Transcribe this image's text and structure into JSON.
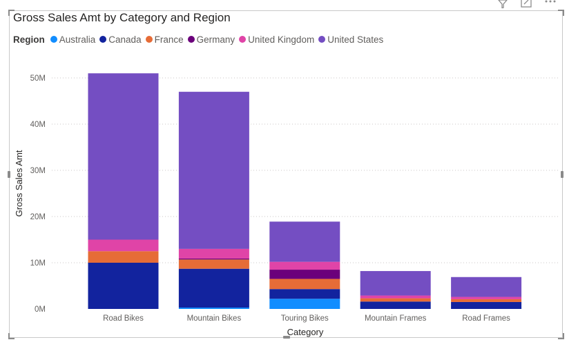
{
  "chart_data": {
    "type": "bar",
    "stacked": true,
    "title": "Gross Sales Amt by Category and Region",
    "xlabel": "Category",
    "ylabel": "Gross Sales Amt",
    "legend_title": "Region",
    "ylim": [
      0,
      53000000
    ],
    "yticks": [
      0,
      10000000,
      20000000,
      30000000,
      40000000,
      50000000
    ],
    "ytick_labels": [
      "0M",
      "10M",
      "20M",
      "30M",
      "40M",
      "50M"
    ],
    "categories": [
      "Road Bikes",
      "Mountain Bikes",
      "Touring Bikes",
      "Mountain Frames",
      "Road Frames"
    ],
    "series": [
      {
        "name": "Australia",
        "color": "#118dff",
        "values": [
          0,
          300000,
          2200000,
          0,
          0
        ]
      },
      {
        "name": "Canada",
        "color": "#12239e",
        "values": [
          10000000,
          8400000,
          2100000,
          1600000,
          1500000
        ]
      },
      {
        "name": "France",
        "color": "#e66c37",
        "values": [
          2500000,
          2000000,
          2200000,
          700000,
          600000
        ]
      },
      {
        "name": "Germany",
        "color": "#6b007b",
        "values": [
          0,
          200000,
          2000000,
          0,
          0
        ]
      },
      {
        "name": "United Kingdom",
        "color": "#e044a7",
        "values": [
          2500000,
          2100000,
          1700000,
          600000,
          500000
        ]
      },
      {
        "name": "United States",
        "color": "#744ec2",
        "values": [
          36000000,
          34000000,
          8700000,
          5300000,
          4300000
        ]
      }
    ]
  }
}
